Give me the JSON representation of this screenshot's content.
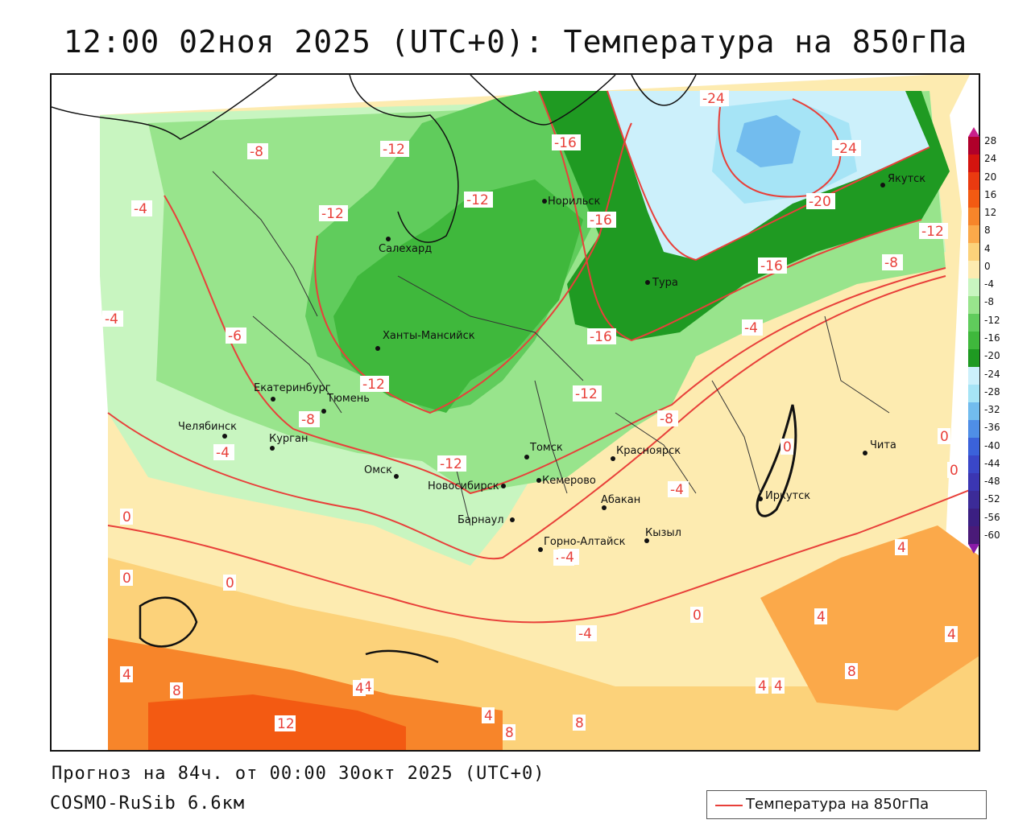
{
  "title": "12:00 02ноя 2025 (UTC+0): Температура на 850гПа",
  "forecast_line": "Прогноз на 84ч. от 00:00 30окт 2025 (UTC+0)",
  "model_line": "COSMO-RuSib 6.6км",
  "legend": {
    "label": "Температура на 850гПа",
    "line_color": "#e8403a"
  },
  "colorbar": {
    "labels": [
      "28",
      "24",
      "20",
      "16",
      "12",
      "8",
      "4",
      "0",
      "-4",
      "-8",
      "-12",
      "-16",
      "-20",
      "-24",
      "-28",
      "-32",
      "-36",
      "-40",
      "-44",
      "-48",
      "-52",
      "-56",
      "-60"
    ],
    "colors": [
      "#b0002a",
      "#d4140f",
      "#ea3a10",
      "#f35a12",
      "#f7852a",
      "#fba94a",
      "#fcd27a",
      "#fdebb0",
      "#c8f5c0",
      "#98e48c",
      "#60cc5c",
      "#3fb83c",
      "#1f9a22",
      "#ccf0fb",
      "#a6e4f6",
      "#72bcee",
      "#4f8ee6",
      "#3b62da",
      "#3a47c8",
      "#3b36b2",
      "#3c2b98",
      "#3b1f82",
      "#4a1a78"
    ],
    "top_arrow_color": "#c81f8a",
    "bottom_arrow_color": "#8a1aa8"
  },
  "cities": [
    {
      "name": "Норильск"
    },
    {
      "name": "Салехард"
    },
    {
      "name": "Тура"
    },
    {
      "name": "Якутск"
    },
    {
      "name": "Ханты-Мансийск"
    },
    {
      "name": "Екатеринбург"
    },
    {
      "name": "Тюмень"
    },
    {
      "name": "Челябинск"
    },
    {
      "name": "Курган"
    },
    {
      "name": "Омск"
    },
    {
      "name": "Новосибирск"
    },
    {
      "name": "Томск"
    },
    {
      "name": "Кемерово"
    },
    {
      "name": "Красноярск"
    },
    {
      "name": "Абакан"
    },
    {
      "name": "Барнаул"
    },
    {
      "name": "Горно-Алтайск"
    },
    {
      "name": "Кызыл"
    },
    {
      "name": "Иркутск"
    },
    {
      "name": "Чита"
    }
  ],
  "isotherm_labels": [
    "-24",
    "-24",
    "-16",
    "-12",
    "-12",
    "-8",
    "-16",
    "-20",
    "-12",
    "-12",
    "-16",
    "-8",
    "-4",
    "-4",
    "-6",
    "-16",
    "-12",
    "-12",
    "-8",
    "-8",
    "-4",
    "-12",
    "-4",
    "-4",
    "-4",
    "0",
    "0",
    "0",
    "-4",
    "0",
    "-4",
    "0",
    "0",
    "0",
    "4",
    "4",
    "8",
    "4",
    "8",
    "12",
    "8",
    "4",
    "4",
    "8",
    "4",
    "4",
    "4",
    "4"
  ]
}
